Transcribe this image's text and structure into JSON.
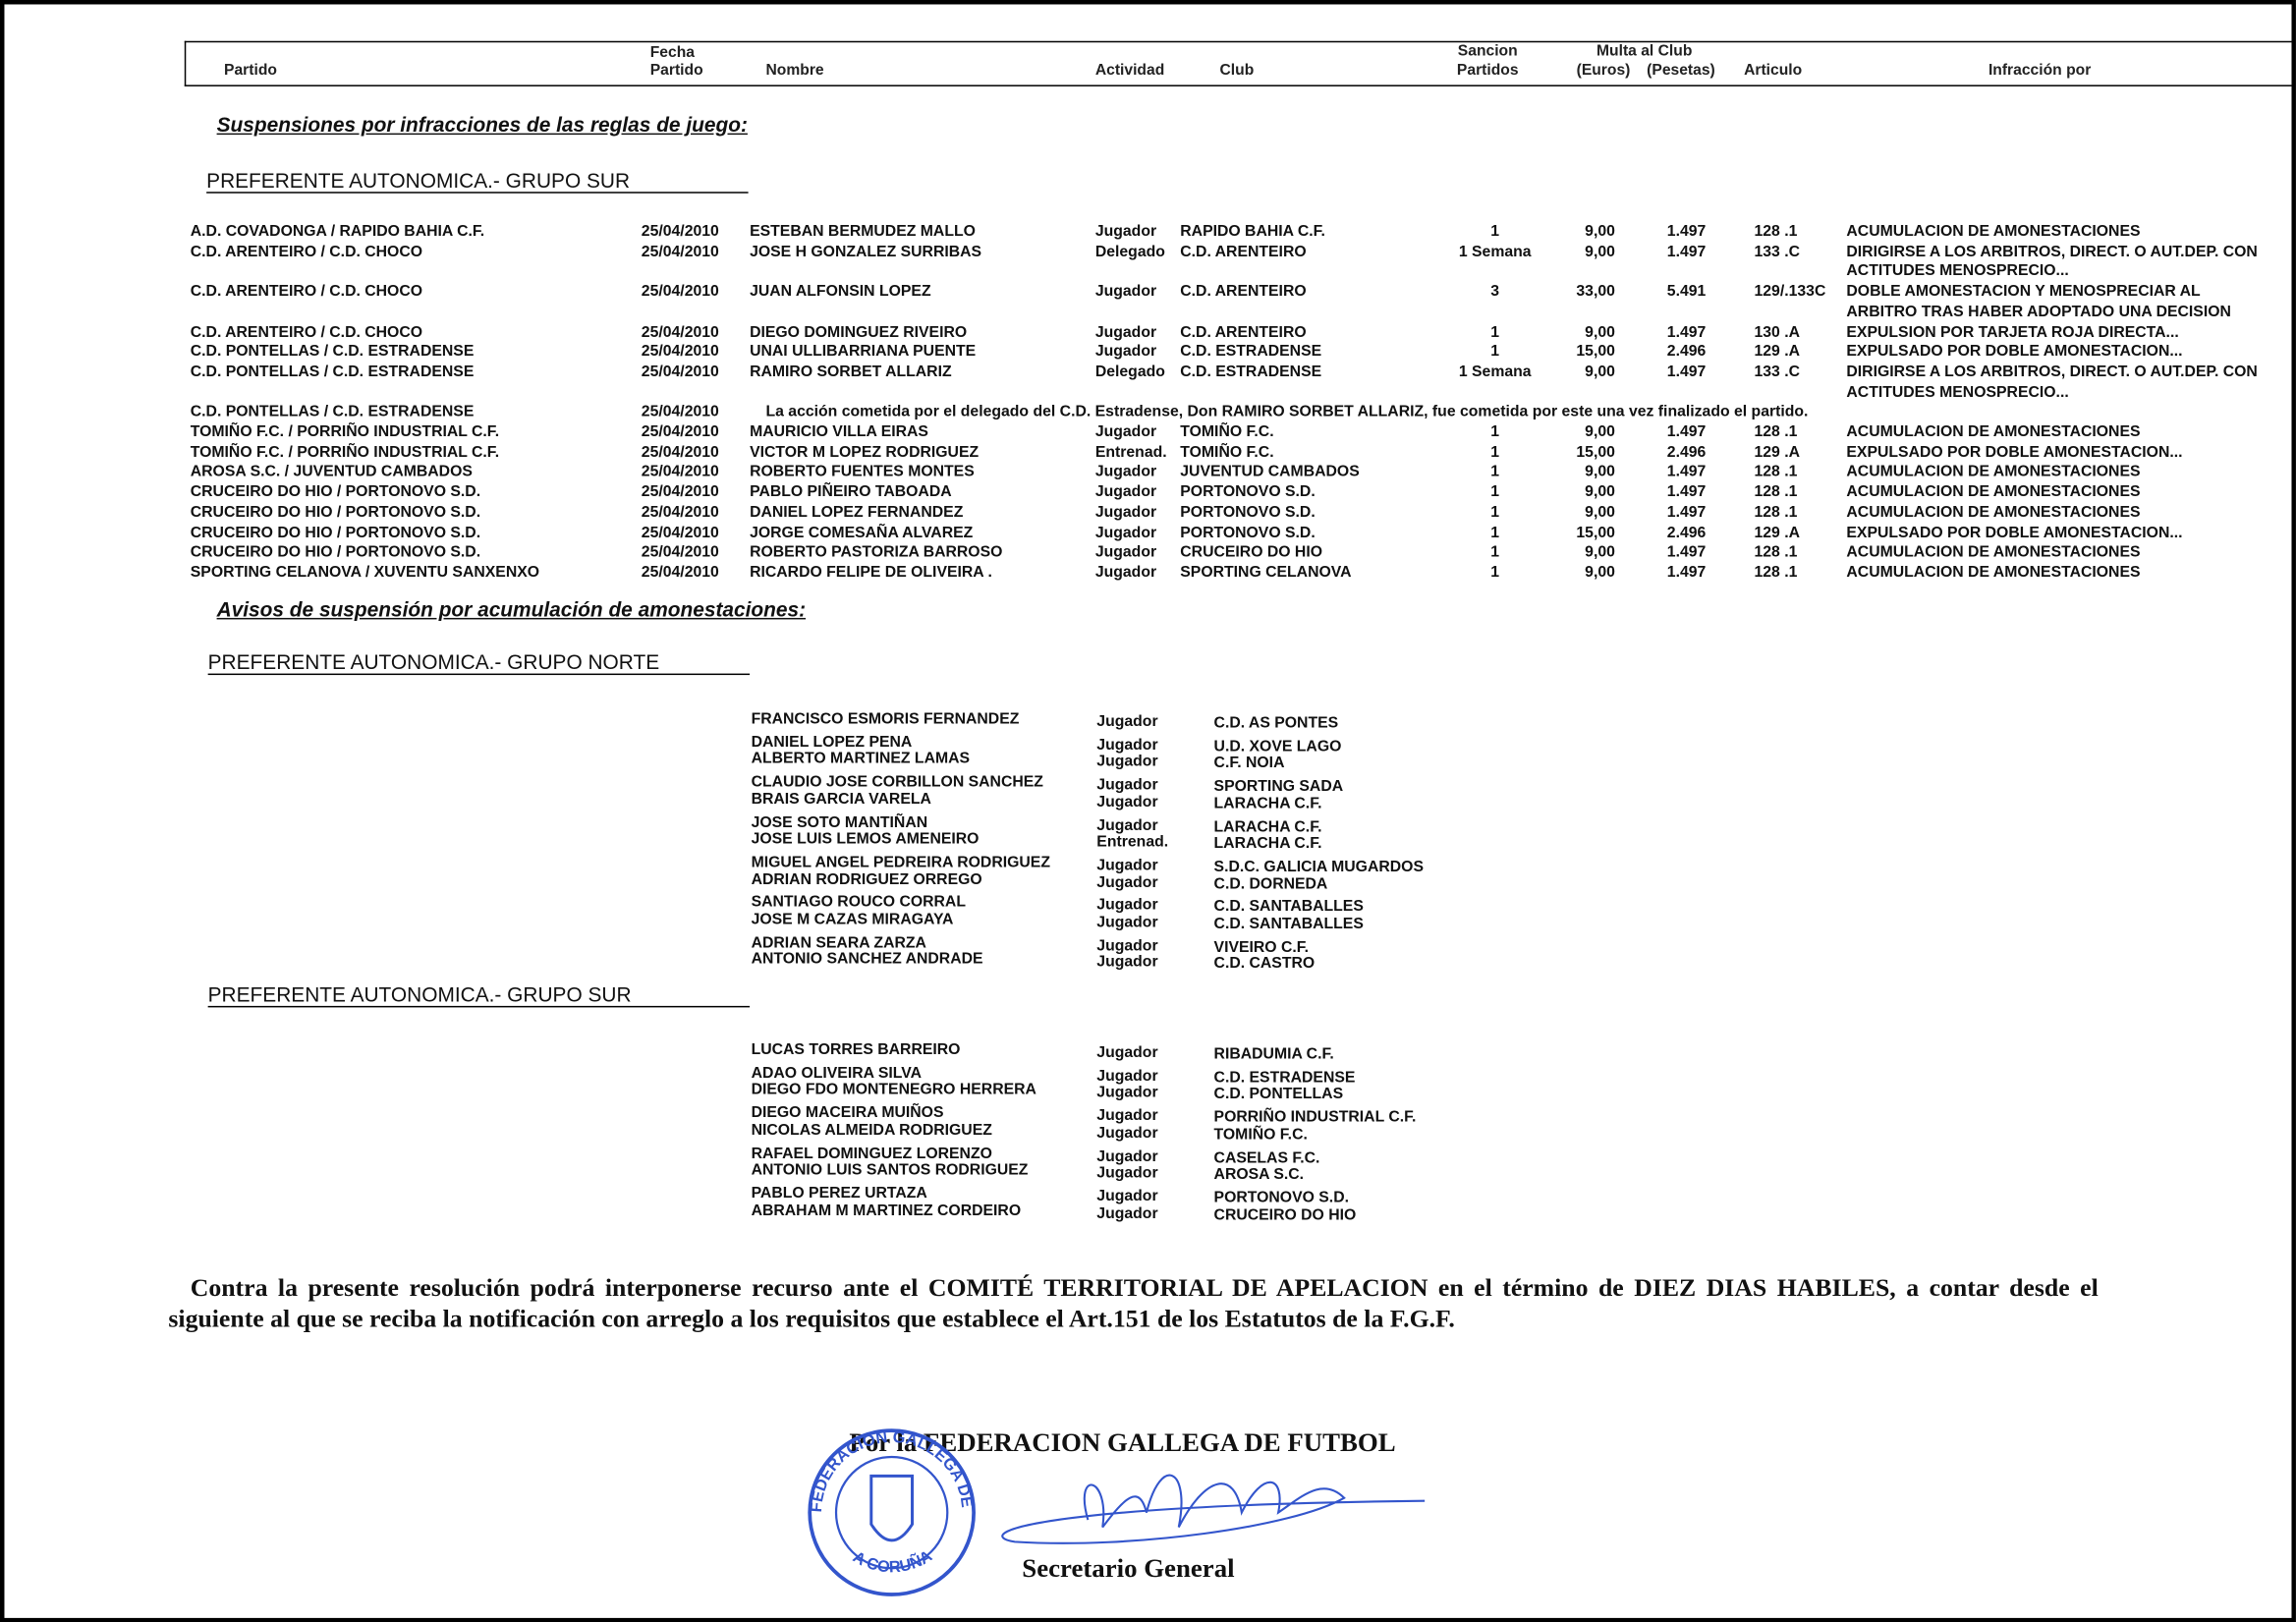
{
  "header": {
    "partido": "Partido",
    "fecha": [
      "Fecha",
      "Partido"
    ],
    "nombre": "Nombre",
    "actividad": "Actividad",
    "club": "Club",
    "sancion": [
      "Sancion",
      "Partidos"
    ],
    "multa": "Multa al Club",
    "euros": "(Euros)",
    "pesetas": "(Pesetas)",
    "articulo": "Articulo",
    "infraccion": "Infracción por"
  },
  "suspensiones": {
    "title": "Suspensiones por infracciones de las reglas de juego:",
    "group": "PREFERENTE AUTONOMICA.- GRUPO SUR",
    "rows": [
      [
        "A.D. COVADONGA / RAPIDO BAHIA C.F.",
        "25/04/2010",
        "ESTEBAN BERMUDEZ MALLO",
        "Jugador",
        "RAPIDO BAHIA C.F.",
        "1",
        "9,00",
        "1.497",
        "128 .1",
        [
          "ACUMULACION DE AMONESTACIONES"
        ]
      ],
      [
        "C.D. ARENTEIRO / C.D. CHOCO",
        "25/04/2010",
        "JOSE H GONZALEZ SURRIBAS",
        "Delegado",
        "C.D. ARENTEIRO",
        "1 Semana",
        "9,00",
        "1.497",
        "133 .C",
        [
          "DIRIGIRSE A LOS ARBITROS, DIRECT. O AUT.DEP. CON",
          "ACTITUDES MENOSPRECIO..."
        ]
      ],
      [
        "C.D. ARENTEIRO / C.D. CHOCO",
        "25/04/2010",
        "JUAN ALFONSIN LOPEZ",
        "Jugador",
        "C.D. ARENTEIRO",
        "3",
        "33,00",
        "5.491",
        "129/.133C",
        [
          "DOBLE AMONESTACION Y  MENOSPRECIAR AL",
          "ARBITRO TRAS HABER ADOPTADO UNA DECISION"
        ]
      ],
      [
        "C.D. ARENTEIRO / C.D. CHOCO",
        "25/04/2010",
        "DIEGO DOMINGUEZ RIVEIRO",
        "Jugador",
        "C.D. ARENTEIRO",
        "1",
        "9,00",
        "1.497",
        "130 .A",
        [
          "EXPULSION POR TARJETA ROJA DIRECTA..."
        ]
      ],
      [
        "C.D. PONTELLAS / C.D. ESTRADENSE",
        "25/04/2010",
        "UNAI ULLIBARRIANA PUENTE",
        "Jugador",
        "C.D. ESTRADENSE",
        "1",
        "15,00",
        "2.496",
        "129 .A",
        [
          "EXPULSADO POR DOBLE AMONESTACION..."
        ]
      ],
      [
        "C.D. PONTELLAS / C.D. ESTRADENSE",
        "25/04/2010",
        "RAMIRO SORBET ALLARIZ",
        "Delegado",
        "C.D. ESTRADENSE",
        "1 Semana",
        "9,00",
        "1.497",
        "133 .C",
        [
          "DIRIGIRSE A LOS ARBITROS, DIRECT. O AUT.DEP. CON",
          "ACTITUDES MENOSPRECIO..."
        ]
      ],
      [
        "C.D. PONTELLAS / C.D. ESTRADENSE",
        "25/04/2010",
        "La acción cometida por el delegado del C.D. Estradense, Don RAMIRO SORBET ALLARIZ, fue cometida por este una vez finalizado el partido."
      ],
      [
        "TOMIÑO F.C. / PORRIÑO INDUSTRIAL C.F.",
        "25/04/2010",
        "MAURICIO VILLA EIRAS",
        "Jugador",
        "TOMIÑO F.C.",
        "1",
        "9,00",
        "1.497",
        "128 .1",
        [
          "ACUMULACION DE AMONESTACIONES"
        ]
      ],
      [
        "TOMIÑO F.C. / PORRIÑO INDUSTRIAL C.F.",
        "25/04/2010",
        "VICTOR M LOPEZ RODRIGUEZ",
        "Entrenad.",
        "TOMIÑO F.C.",
        "1",
        "15,00",
        "2.496",
        "129 .A",
        [
          "EXPULSADO POR DOBLE AMONESTACION..."
        ]
      ],
      [
        "AROSA S.C. / JUVENTUD CAMBADOS",
        "25/04/2010",
        "ROBERTO FUENTES MONTES",
        "Jugador",
        "JUVENTUD CAMBADOS",
        "1",
        "9,00",
        "1.497",
        "128 .1",
        [
          "ACUMULACION DE AMONESTACIONES"
        ]
      ],
      [
        "CRUCEIRO DO HIO / PORTONOVO S.D.",
        "25/04/2010",
        "PABLO PIÑEIRO TABOADA",
        "Jugador",
        "PORTONOVO S.D.",
        "1",
        "9,00",
        "1.497",
        "128 .1",
        [
          "ACUMULACION DE AMONESTACIONES"
        ]
      ],
      [
        "CRUCEIRO DO HIO / PORTONOVO S.D.",
        "25/04/2010",
        "DANIEL LOPEZ FERNANDEZ",
        "Jugador",
        "PORTONOVO S.D.",
        "1",
        "9,00",
        "1.497",
        "128 .1",
        [
          "ACUMULACION DE AMONESTACIONES"
        ]
      ],
      [
        "CRUCEIRO DO HIO / PORTONOVO S.D.",
        "25/04/2010",
        "JORGE COMESAÑA ALVAREZ",
        "Jugador",
        "PORTONOVO S.D.",
        "1",
        "15,00",
        "2.496",
        "129 .A",
        [
          "EXPULSADO POR DOBLE AMONESTACION..."
        ]
      ],
      [
        "CRUCEIRO DO HIO / PORTONOVO S.D.",
        "25/04/2010",
        "ROBERTO PASTORIZA BARROSO",
        "Jugador",
        "CRUCEIRO DO HIO",
        "1",
        "9,00",
        "1.497",
        "128 .1",
        [
          "ACUMULACION DE AMONESTACIONES"
        ]
      ],
      [
        "SPORTING CELANOVA / XUVENTU SANXENXO",
        "25/04/2010",
        "RICARDO FELIPE DE OLIVEIRA .",
        "Jugador",
        "SPORTING CELANOVA",
        "1",
        "9,00",
        "1.497",
        "128 .1",
        [
          "ACUMULACION DE AMONESTACIONES"
        ]
      ]
    ]
  },
  "avisos": {
    "title": "Avisos de suspensión por acumulación de amonestaciones:",
    "groups": [
      {
        "name": "PREFERENTE AUTONOMICA.- GRUPO NORTE",
        "rows": [
          [
            "FRANCISCO ESMORIS FERNANDEZ",
            "Jugador",
            "C.D. AS PONTES"
          ],
          [
            "DANIEL LOPEZ PENA",
            "Jugador",
            "U.D. XOVE LAGO"
          ],
          [
            "ALBERTO MARTINEZ LAMAS",
            "Jugador",
            "C.F. NOIA"
          ],
          [
            "CLAUDIO JOSE CORBILLON SANCHEZ",
            "Jugador",
            "SPORTING SADA"
          ],
          [
            "BRAIS GARCIA VARELA",
            "Jugador",
            "LARACHA C.F."
          ],
          [
            "JOSE SOTO MANTIÑAN",
            "Jugador",
            "LARACHA C.F."
          ],
          [
            "JOSE LUIS LEMOS AMENEIRO",
            "Entrenad.",
            "LARACHA C.F."
          ],
          [
            "MIGUEL ANGEL PEDREIRA RODRIGUEZ",
            "Jugador",
            "S.D.C. GALICIA MUGARDOS"
          ],
          [
            "ADRIAN RODRIGUEZ ORREGO",
            "Jugador",
            "C.D. DORNEDA"
          ],
          [
            "SANTIAGO ROUCO CORRAL",
            "Jugador",
            "C.D. SANTABALLES"
          ],
          [
            "JOSE M CAZAS MIRAGAYA",
            "Jugador",
            "C.D. SANTABALLES"
          ],
          [
            "ADRIAN SEARA ZARZA",
            "Jugador",
            "VIVEIRO C.F."
          ],
          [
            "ANTONIO SANCHEZ ANDRADE",
            "Jugador",
            "C.D. CASTRO"
          ]
        ]
      },
      {
        "name": "PREFERENTE AUTONOMICA.- GRUPO SUR",
        "rows": [
          [
            "LUCAS TORRES BARREIRO",
            "Jugador",
            "RIBADUMIA C.F."
          ],
          [
            "ADAO OLIVEIRA SILVA",
            "Jugador",
            "C.D. ESTRADENSE"
          ],
          [
            "DIEGO FDO MONTENEGRO HERRERA",
            "Jugador",
            "C.D. PONTELLAS"
          ],
          [
            "DIEGO MACEIRA MUIÑOS",
            "Jugador",
            "PORRIÑO INDUSTRIAL C.F."
          ],
          [
            "NICOLAS ALMEIDA RODRIGUEZ",
            "Jugador",
            "TOMIÑO F.C."
          ],
          [
            "RAFAEL DOMINGUEZ LORENZO",
            "Jugador",
            "CASELAS F.C."
          ],
          [
            "ANTONIO LUIS SANTOS RODRIGUEZ",
            "Jugador",
            "AROSA S.C."
          ],
          [
            "PABLO PEREZ URTAZA",
            "Jugador",
            "PORTONOVO S.D."
          ],
          [
            "ABRAHAM M MARTINEZ CORDEIRO",
            "Jugador",
            "CRUCEIRO DO HIO"
          ]
        ]
      }
    ]
  },
  "footer": {
    "text": "Contra la presente resolución podrá interponerse recurso ante el COMITÉ TERRITORIAL DE APELACION en el término de DIEZ DIAS HABILES, a contar desde el siguiente al que se reciba la notificación con arreglo a los requisitos que establece el Art.151 de los Estatutos de la F.G.F.",
    "firma": "Por la FEDERACION GALLEGA DE FUTBOL",
    "cargo": "Secretario General",
    "sello": [
      "FEDERACION GALLEGA DE FUTBOL",
      "A CORUÑA"
    ]
  }
}
